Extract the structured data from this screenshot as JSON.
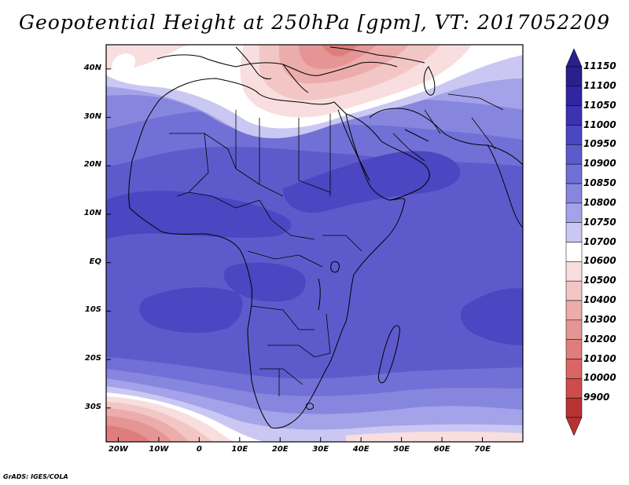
{
  "title": "Geopotential Height at 250hPa [gpm], VT: 2017052209",
  "credit": "GrADS: IGES/COLA",
  "map": {
    "lon_range": [
      -23,
      80
    ],
    "lat_range": [
      -37,
      45
    ],
    "lat_labels": [
      {
        "lat": 40,
        "text": "40N"
      },
      {
        "lat": 30,
        "text": "30N"
      },
      {
        "lat": 20,
        "text": "20N"
      },
      {
        "lat": 10,
        "text": "10N"
      },
      {
        "lat": 0,
        "text": "EQ"
      },
      {
        "lat": -10,
        "text": "10S"
      },
      {
        "lat": -20,
        "text": "20S"
      },
      {
        "lat": -30,
        "text": "30S"
      }
    ],
    "lon_labels": [
      {
        "lon": -20,
        "text": "20W"
      },
      {
        "lon": -10,
        "text": "10W"
      },
      {
        "lon": 0,
        "text": "0"
      },
      {
        "lon": 10,
        "text": "10E"
      },
      {
        "lon": 20,
        "text": "20E"
      },
      {
        "lon": 30,
        "text": "30E"
      },
      {
        "lon": 40,
        "text": "40E"
      },
      {
        "lon": 50,
        "text": "50E"
      },
      {
        "lon": 60,
        "text": "60E"
      },
      {
        "lon": 70,
        "text": "70E"
      }
    ]
  },
  "colorbar": {
    "levels": [
      {
        "label": "11150",
        "color": "#2a1f8c"
      },
      {
        "label": "11100",
        "color": "#3026a0"
      },
      {
        "label": "11050",
        "color": "#3b33b4"
      },
      {
        "label": "11000",
        "color": "#4b46c2"
      },
      {
        "label": "10950",
        "color": "#5d5bcc"
      },
      {
        "label": "10900",
        "color": "#7170d6"
      },
      {
        "label": "10850",
        "color": "#8786df"
      },
      {
        "label": "10800",
        "color": "#a4a2e8"
      },
      {
        "label": "10750",
        "color": "#cac8f2"
      },
      {
        "label": "10700",
        "color": "#ffffff"
      },
      {
        "label": "10600",
        "color": "#f8dede"
      },
      {
        "label": "10500",
        "color": "#f3c6c6"
      },
      {
        "label": "10400",
        "color": "#ecacac"
      },
      {
        "label": "10300",
        "color": "#e59595"
      },
      {
        "label": "10200",
        "color": "#df7d7d"
      },
      {
        "label": "10100",
        "color": "#d96565"
      },
      {
        "label": "10000",
        "color": "#cf4c4c"
      },
      {
        "label": "9900",
        "color": "#b83232"
      }
    ],
    "top_arrow_color": "#2a1f8c",
    "bottom_arrow_color": "#b83232"
  }
}
